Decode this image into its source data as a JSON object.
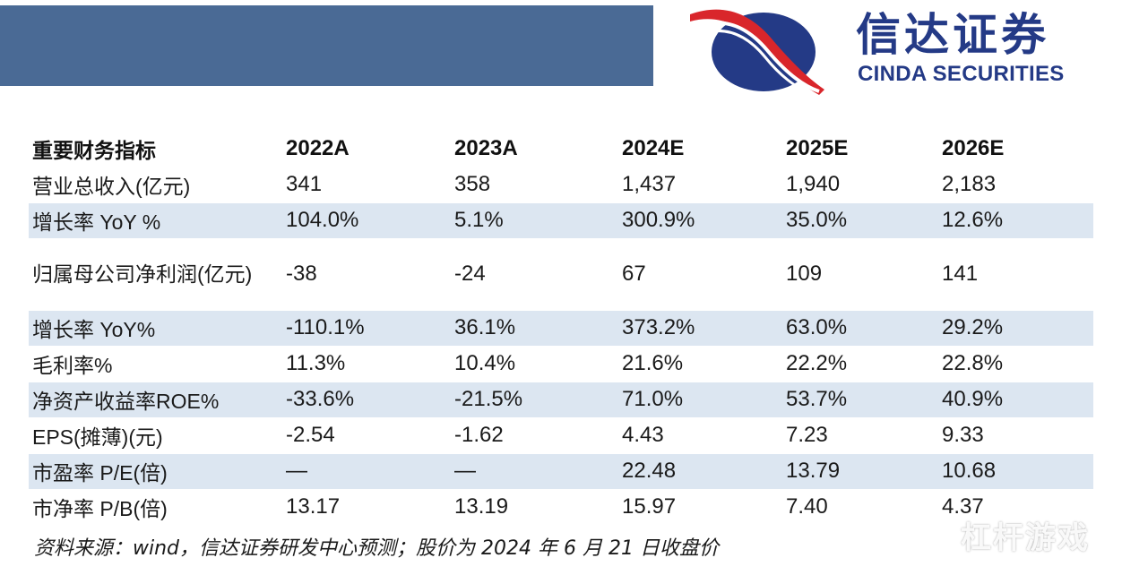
{
  "brand": {
    "name_cn": "信达证券",
    "name_en": "CINDA SECURITIES",
    "logo_icon": "cinda-swoosh-logo",
    "colors": {
      "navy": "#243a86",
      "red": "#d9262b",
      "band": "#4a6a95",
      "row_shade": "#dce6f1"
    }
  },
  "table": {
    "header": [
      "重要财务指标",
      "2022A",
      "2023A",
      "2024E",
      "2025E",
      "2026E"
    ],
    "rows": [
      {
        "label": "营业总收入(亿元)",
        "values": [
          "341",
          "358",
          "1,437",
          "1,940",
          "2,183"
        ]
      },
      {
        "label": "增长率 YoY %",
        "values": [
          "104.0%",
          "5.1%",
          "300.9%",
          "35.0%",
          "12.6%"
        ]
      },
      {
        "label": "归属母公司净利润(亿元)",
        "values": [
          "-38",
          "-24",
          "67",
          "109",
          "141"
        ]
      },
      {
        "label": "增长率 YoY%",
        "values": [
          "-110.1%",
          "36.1%",
          "373.2%",
          "63.0%",
          "29.2%"
        ]
      },
      {
        "label": "毛利率%",
        "values": [
          "11.3%",
          "10.4%",
          "21.6%",
          "22.2%",
          "22.8%"
        ]
      },
      {
        "label": "净资产收益率ROE%",
        "values": [
          "-33.6%",
          "-21.5%",
          "71.0%",
          "53.7%",
          "40.9%"
        ]
      },
      {
        "label": "EPS(摊薄)(元)",
        "values": [
          "-2.54",
          "-1.62",
          "4.43",
          "7.23",
          "9.33"
        ]
      },
      {
        "label": "市盈率 P/E(倍)",
        "values": [
          "—",
          "—",
          "22.48",
          "13.79",
          "10.68"
        ]
      },
      {
        "label": "市净率 P/B(倍)",
        "values": [
          "13.17",
          "13.19",
          "15.97",
          "7.40",
          "4.37"
        ]
      }
    ]
  },
  "source_note": "资料来源：wind，信达证券研发中心预测；股价为 2024 年 6 月 21 日收盘价",
  "watermark": "杠杆游戏"
}
